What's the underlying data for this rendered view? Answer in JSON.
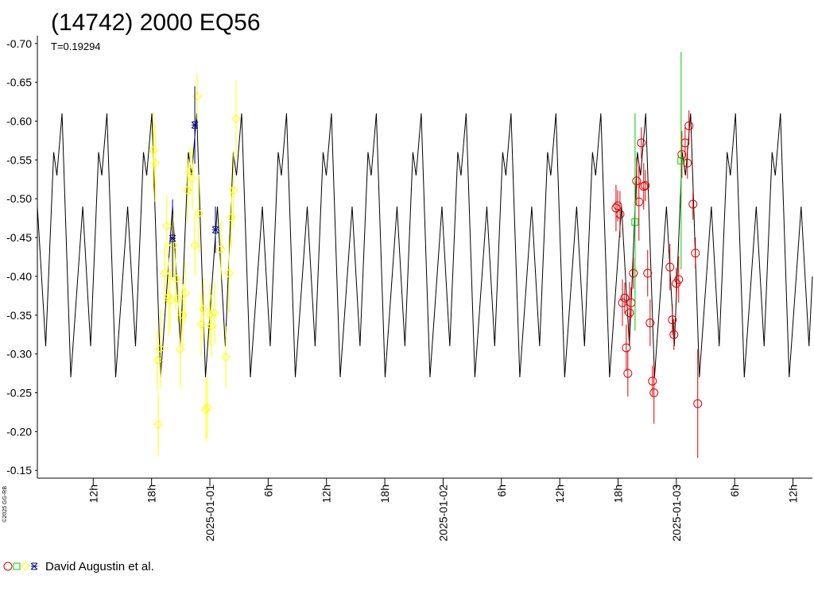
{
  "chart_data": {
    "type": "scatter",
    "title": "(14742) 2000 EQ56",
    "subtitle": "T=0.19294",
    "credit": "©2025 GG-RB",
    "legend": "David Augustin et al.",
    "xlim": [
      -17.75,
      62
    ],
    "ylim": [
      -0.14,
      -0.71
    ],
    "xticks": [
      {
        "value": -12,
        "label": "12h"
      },
      {
        "value": -6,
        "label": "18h"
      },
      {
        "value": 0,
        "label": "2025-01-01"
      },
      {
        "value": 6,
        "label": "6h"
      },
      {
        "value": 12,
        "label": "12h"
      },
      {
        "value": 18,
        "label": "18h"
      },
      {
        "value": 24,
        "label": "2025-01-02"
      },
      {
        "value": 30,
        "label": "6h"
      },
      {
        "value": 36,
        "label": "12h"
      },
      {
        "value": 42,
        "label": "18h"
      },
      {
        "value": 48,
        "label": "2025-01-03"
      },
      {
        "value": 54,
        "label": "6h"
      },
      {
        "value": 60,
        "label": "12h"
      }
    ],
    "yticks": [
      {
        "value": -0.7,
        "label": "-0.70"
      },
      {
        "value": -0.65,
        "label": "-0.65"
      },
      {
        "value": -0.6,
        "label": "-0.60"
      },
      {
        "value": -0.55,
        "label": "-0.55"
      },
      {
        "value": -0.5,
        "label": "-0.50"
      },
      {
        "value": -0.45,
        "label": "-0.45"
      },
      {
        "value": -0.4,
        "label": "-0.40"
      },
      {
        "value": -0.35,
        "label": "-0.35"
      },
      {
        "value": -0.3,
        "label": "-0.30"
      },
      {
        "value": -0.25,
        "label": "-0.25"
      },
      {
        "value": -0.2,
        "label": "-0.20"
      },
      {
        "value": -0.15,
        "label": "-0.15"
      }
    ],
    "series": [
      {
        "type": "line",
        "color": "#000000",
        "x": [
          -17.75,
          -16.89,
          -16.07,
          -15.74,
          -15.21,
          -14.31,
          -13.08,
          -12.27,
          -11.45,
          -11.12,
          -10.59,
          -9.69,
          -8.46,
          -7.65,
          -6.83,
          -6.5,
          -5.97,
          -5.07,
          -3.84,
          -3.03,
          -2.21,
          -1.88,
          -1.35,
          -0.45,
          0.78,
          1.59,
          2.41,
          2.74,
          3.27,
          4.17,
          5.4,
          6.21,
          7.03,
          7.36,
          7.89,
          8.79,
          10.02,
          10.83,
          11.65,
          11.98,
          12.51,
          13.41,
          14.64,
          15.45,
          16.27,
          16.6,
          17.13,
          18.03,
          19.26,
          20.07,
          20.89,
          21.22,
          21.75,
          22.65,
          23.88,
          24.69,
          25.51,
          25.84,
          26.37,
          27.27,
          28.5,
          29.31,
          30.13,
          30.46,
          30.99,
          31.89,
          33.12,
          33.93,
          34.75,
          35.08,
          35.61,
          36.51,
          37.74,
          38.55,
          39.37,
          39.7,
          40.23,
          41.13,
          42.36,
          43.17,
          43.99,
          44.32,
          44.85,
          45.75,
          46.98,
          47.79,
          48.61,
          48.94,
          49.47,
          50.37,
          51.6,
          52.41,
          53.23,
          53.56,
          54.09,
          54.99,
          56.22,
          57.03,
          57.85,
          58.18,
          58.71,
          59.61,
          60.84,
          61.65,
          62
        ],
        "values": [
          -0.49,
          -0.31,
          -0.56,
          -0.53,
          -0.61,
          -0.27,
          -0.49,
          -0.31,
          -0.56,
          -0.53,
          -0.61,
          -0.27,
          -0.49,
          -0.31,
          -0.56,
          -0.53,
          -0.61,
          -0.27,
          -0.49,
          -0.31,
          -0.56,
          -0.53,
          -0.61,
          -0.27,
          -0.49,
          -0.31,
          -0.56,
          -0.53,
          -0.61,
          -0.27,
          -0.49,
          -0.31,
          -0.56,
          -0.53,
          -0.61,
          -0.27,
          -0.49,
          -0.31,
          -0.56,
          -0.53,
          -0.61,
          -0.27,
          -0.49,
          -0.31,
          -0.56,
          -0.53,
          -0.61,
          -0.27,
          -0.49,
          -0.31,
          -0.56,
          -0.53,
          -0.61,
          -0.27,
          -0.49,
          -0.31,
          -0.56,
          -0.53,
          -0.61,
          -0.27,
          -0.49,
          -0.31,
          -0.56,
          -0.53,
          -0.61,
          -0.27,
          -0.49,
          -0.31,
          -0.56,
          -0.53,
          -0.61,
          -0.27,
          -0.49,
          -0.31,
          -0.56,
          -0.53,
          -0.61,
          -0.27,
          -0.49,
          -0.31,
          -0.56,
          -0.53,
          -0.61,
          -0.27,
          -0.49,
          -0.31,
          -0.56,
          -0.53,
          -0.61,
          -0.27,
          -0.49,
          -0.31,
          -0.56,
          -0.53,
          -0.61,
          -0.27,
          -0.49,
          -0.31,
          -0.56,
          -0.53,
          -0.61,
          -0.27,
          -0.49,
          -0.31,
          -0.4
        ]
      },
      {
        "type": "scatter",
        "marker": "circle",
        "color": "#dd0000",
        "x": [
          41.79,
          41.96,
          42.2,
          42.45,
          42.69,
          42.85,
          43.01,
          43.18,
          43.34,
          43.58,
          43.91,
          44.15,
          44.4,
          44.64,
          44.81,
          45.05,
          45.3,
          45.54,
          45.7,
          47.34,
          47.59,
          47.75,
          47.99,
          48.24,
          48.57,
          48.9,
          49.14,
          49.3,
          49.71,
          49.96,
          50.2
        ],
        "values": [
          -0.488,
          -0.491,
          -0.48,
          -0.366,
          -0.372,
          -0.308,
          -0.275,
          -0.353,
          -0.366,
          -0.404,
          -0.523,
          -0.496,
          -0.572,
          -0.516,
          -0.517,
          -0.404,
          -0.34,
          -0.265,
          -0.25,
          -0.412,
          -0.344,
          -0.325,
          -0.391,
          -0.396,
          -0.557,
          -0.572,
          -0.546,
          -0.594,
          -0.493,
          -0.43,
          -0.236
        ],
        "errors": [
          0.03,
          0.02,
          0.03,
          0.03,
          0.02,
          0.03,
          0.03,
          0.04,
          0.02,
          0.02,
          0.03,
          0.05,
          0.02,
          0.03,
          0.02,
          0.03,
          0.03,
          0.02,
          0.04,
          0.03,
          0.02,
          0.02,
          0.02,
          0.03,
          0.03,
          0.02,
          0.02,
          0.02,
          0.02,
          0.02,
          0.07
        ]
      },
      {
        "type": "scatter",
        "marker": "square",
        "color": "#00cc00",
        "x": [
          43.75,
          48.49
        ],
        "values": [
          -0.47,
          -0.549
        ],
        "errors": [
          0.14,
          0.14
        ]
      },
      {
        "type": "scatter",
        "marker": "diamond",
        "color": "#ffff00",
        "x": [
          -5.81,
          -5.64,
          -5.4,
          -5.31,
          -5.07,
          -4.66,
          -4.42,
          -4.25,
          -4.09,
          -3.76,
          -3.52,
          -3.27,
          -3.03,
          -2.78,
          -2.54,
          -2.29,
          -2.04,
          -1.8,
          -1.55,
          -1.31,
          -1.14,
          -0.9,
          -0.65,
          -0.41,
          -0.25,
          0.0,
          0.16,
          0.49,
          1.14,
          1.64,
          1.96,
          2.21,
          2.45,
          2.7
        ],
        "values": [
          -0.562,
          -0.546,
          -0.292,
          -0.209,
          -0.307,
          -0.404,
          -0.465,
          -0.374,
          -0.369,
          -0.44,
          -0.397,
          -0.371,
          -0.306,
          -0.35,
          -0.379,
          -0.511,
          -0.536,
          -0.526,
          -0.44,
          -0.632,
          -0.481,
          -0.338,
          -0.358,
          -0.228,
          -0.231,
          -0.35,
          -0.336,
          -0.353,
          -0.435,
          -0.296,
          -0.404,
          -0.476,
          -0.511,
          -0.603
        ],
        "errors": [
          0.05,
          0.05,
          0.04,
          0.04,
          0.05,
          0.04,
          0.04,
          0.05,
          0.04,
          0.04,
          0.04,
          0.03,
          0.05,
          0.04,
          0.04,
          0.04,
          0.03,
          0.04,
          0.04,
          0.03,
          0.05,
          0.04,
          0.04,
          0.04,
          0.04,
          0.04,
          0.04,
          0.04,
          0.04,
          0.04,
          0.05,
          0.04,
          0.05,
          0.05
        ]
      },
      {
        "type": "scatter",
        "marker": "star",
        "color": "#000080",
        "x": [
          -3.84,
          -1.55,
          0.57
        ],
        "values": [
          -0.449,
          -0.595,
          -0.46
        ],
        "errors": [
          0.05,
          0.05,
          0.03
        ]
      }
    ]
  }
}
